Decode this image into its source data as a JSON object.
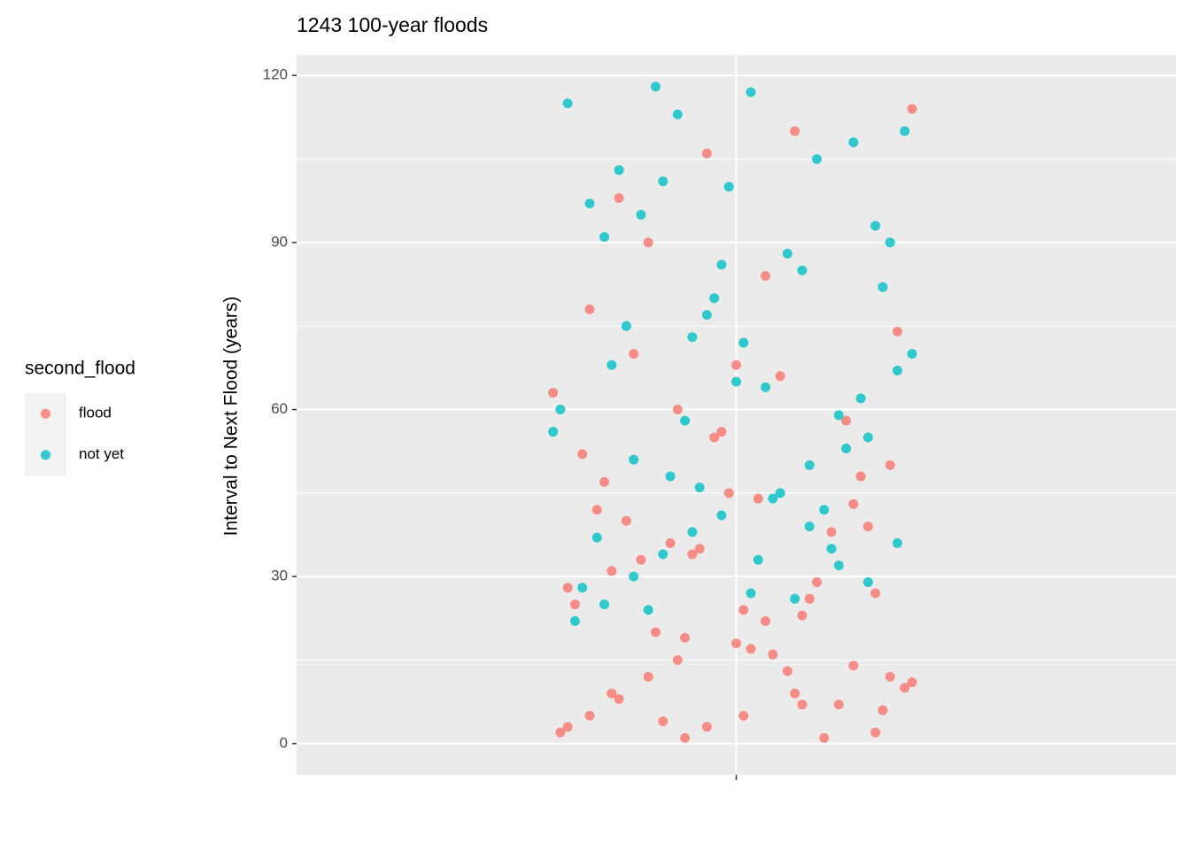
{
  "chart_data": {
    "type": "scatter",
    "title": "1243 100-year floods",
    "y_label": "Interval to Next Flood (years)",
    "legend_title": "second_flood",
    "categories": [
      null
    ],
    "xlim": [
      0.4,
      1.6
    ],
    "ylim": [
      -5.6,
      123.7
    ],
    "yticks": [
      0,
      30,
      60,
      90,
      120
    ],
    "yminor": [
      15,
      45,
      75,
      105
    ],
    "grid": true,
    "legend": "left",
    "series": [
      {
        "name": "flood",
        "color": "#F8766D",
        "x": [
          0.76,
          0.8,
          0.84,
          0.88,
          0.92,
          0.96,
          1.0,
          1.04,
          1.08,
          1.12,
          1.16,
          1.2,
          1.24,
          0.78,
          0.9,
          1.02,
          1.14,
          0.77,
          0.83,
          0.89,
          0.95,
          1.01,
          1.07,
          1.13,
          1.19,
          1.23,
          0.81,
          0.87,
          0.93,
          0.99,
          1.05,
          1.11,
          1.17,
          0.79,
          0.85,
          0.91,
          0.97,
          1.03,
          1.09,
          1.15,
          1.21,
          0.75,
          0.82,
          0.94,
          1.06,
          1.18,
          0.86,
          0.98,
          1.1,
          1.22,
          0.8,
          0.92,
          1.04,
          1.16,
          0.88,
          1.0,
          0.84,
          0.96,
          1.08,
          1.24,
          0.77,
          0.93,
          1.09,
          1.21,
          0.83,
          1.01,
          1.19
        ],
        "values": [
          2,
          5,
          8,
          12,
          15,
          3,
          18,
          22,
          9,
          1,
          14,
          6,
          11,
          25,
          4,
          17,
          7,
          28,
          31,
          20,
          35,
          24,
          13,
          38,
          27,
          10,
          42,
          33,
          19,
          45,
          16,
          29,
          48,
          52,
          40,
          36,
          55,
          44,
          23,
          58,
          50,
          63,
          47,
          34,
          66,
          39,
          70,
          56,
          26,
          74,
          78,
          60,
          84,
          43,
          90,
          68,
          98,
          106,
          110,
          114,
          3,
          1,
          7,
          12,
          9,
          5,
          2
        ]
      },
      {
        "name": "not yet",
        "color": "#00BFC4",
        "x": [
          0.78,
          0.82,
          0.86,
          0.9,
          0.94,
          0.98,
          1.02,
          1.06,
          1.1,
          1.14,
          1.18,
          1.22,
          0.76,
          0.88,
          1.0,
          1.12,
          1.24,
          0.79,
          0.85,
          0.91,
          0.97,
          1.03,
          1.09,
          1.15,
          1.21,
          0.81,
          0.87,
          0.93,
          0.99,
          1.05,
          1.11,
          1.17,
          1.23,
          0.77,
          0.83,
          0.89,
          0.95,
          1.01,
          1.07,
          1.13,
          1.19,
          0.75,
          0.84,
          0.96,
          1.08,
          1.2,
          0.8,
          0.92,
          1.04,
          1.16,
          0.86,
          0.98,
          1.1,
          1.22,
          0.9,
          1.02,
          1.14,
          0.82,
          0.94,
          1.18
        ],
        "values": [
          22,
          25,
          30,
          34,
          38,
          41,
          27,
          45,
          50,
          32,
          55,
          36,
          60,
          24,
          65,
          42,
          70,
          28,
          75,
          48,
          80,
          33,
          85,
          53,
          90,
          37,
          95,
          58,
          100,
          44,
          105,
          62,
          110,
          115,
          68,
          118,
          46,
          72,
          88,
          35,
          93,
          56,
          103,
          77,
          26,
          82,
          97,
          113,
          64,
          108,
          51,
          86,
          39,
          67,
          101,
          117,
          59,
          91,
          73,
          29
        ]
      }
    ]
  }
}
